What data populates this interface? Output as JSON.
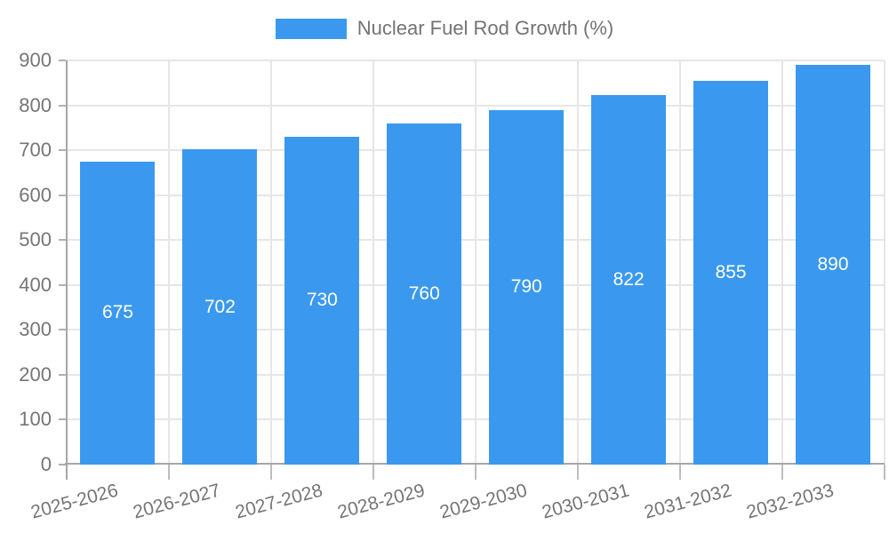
{
  "chart_data": {
    "type": "bar",
    "title": "Nuclear Fuel Rod Growth (%)",
    "legend": {
      "label": "Nuclear Fuel Rod Growth (%)",
      "position": "top"
    },
    "categories": [
      "2025-2026",
      "2026-2027",
      "2027-2028",
      "2028-2029",
      "2029-2030",
      "2030-2031",
      "2031-2032",
      "2032-2033"
    ],
    "series": [
      {
        "name": "Nuclear Fuel Rod Growth (%)",
        "values": [
          675,
          702,
          730,
          760,
          790,
          822,
          855,
          890
        ]
      }
    ],
    "value_labels": [
      "675",
      "702",
      "730",
      "760",
      "790",
      "822",
      "855",
      "890"
    ],
    "xlabel": "",
    "ylabel": "",
    "ylim": [
      0,
      900
    ],
    "ytick_step": 100,
    "ytick_labels": [
      "0",
      "100",
      "200",
      "300",
      "400",
      "500",
      "600",
      "700",
      "800",
      "900"
    ],
    "grid": "on",
    "x_label_rotation_deg": -15,
    "colors": {
      "bar": "#3a99ee",
      "value_label_text": "#ffffff",
      "axis_text": "#757575",
      "legend_text": "#737373",
      "gridline": "#e6e6e6",
      "axis_line": "#a6a6a6",
      "background": "#ffffff"
    }
  }
}
